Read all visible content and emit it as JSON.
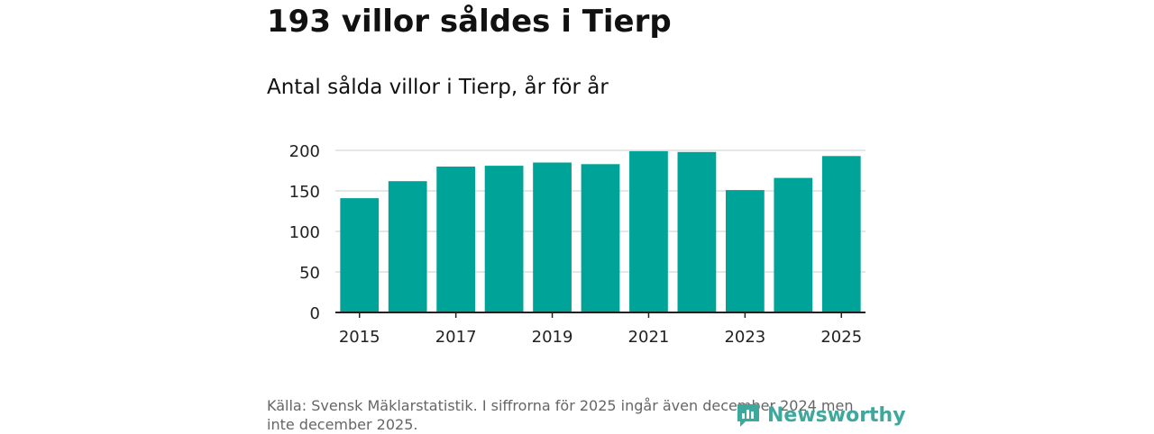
{
  "header": {
    "title": "193 villor såldes i Tierp",
    "subtitle": "Antal sålda villor i Tierp, år för år"
  },
  "footer": {
    "source": "Källa: Svensk Mäklarstatistik. I siffrorna för 2025 ingår även december 2024 men inte december 2025.",
    "brand": "Newsworthy"
  },
  "colors": {
    "bar": "#00a398",
    "grid": "#dddddd",
    "axis": "#222222",
    "brand": "#3fa89c"
  },
  "chart_data": {
    "type": "bar",
    "title": "Antal sålda villor i Tierp, år för år",
    "categories": [
      "2015",
      "2016",
      "2017",
      "2018",
      "2019",
      "2020",
      "2021",
      "2022",
      "2023",
      "2024",
      "2025"
    ],
    "values": [
      141,
      162,
      180,
      181,
      185,
      183,
      199,
      198,
      151,
      166,
      193
    ],
    "xticks": [
      "2015",
      "2017",
      "2019",
      "2021",
      "2023",
      "2025"
    ],
    "yticks": [
      0,
      50,
      100,
      150,
      200
    ],
    "ylim": [
      0,
      200
    ],
    "xlabel": "",
    "ylabel": "",
    "grid": true
  }
}
